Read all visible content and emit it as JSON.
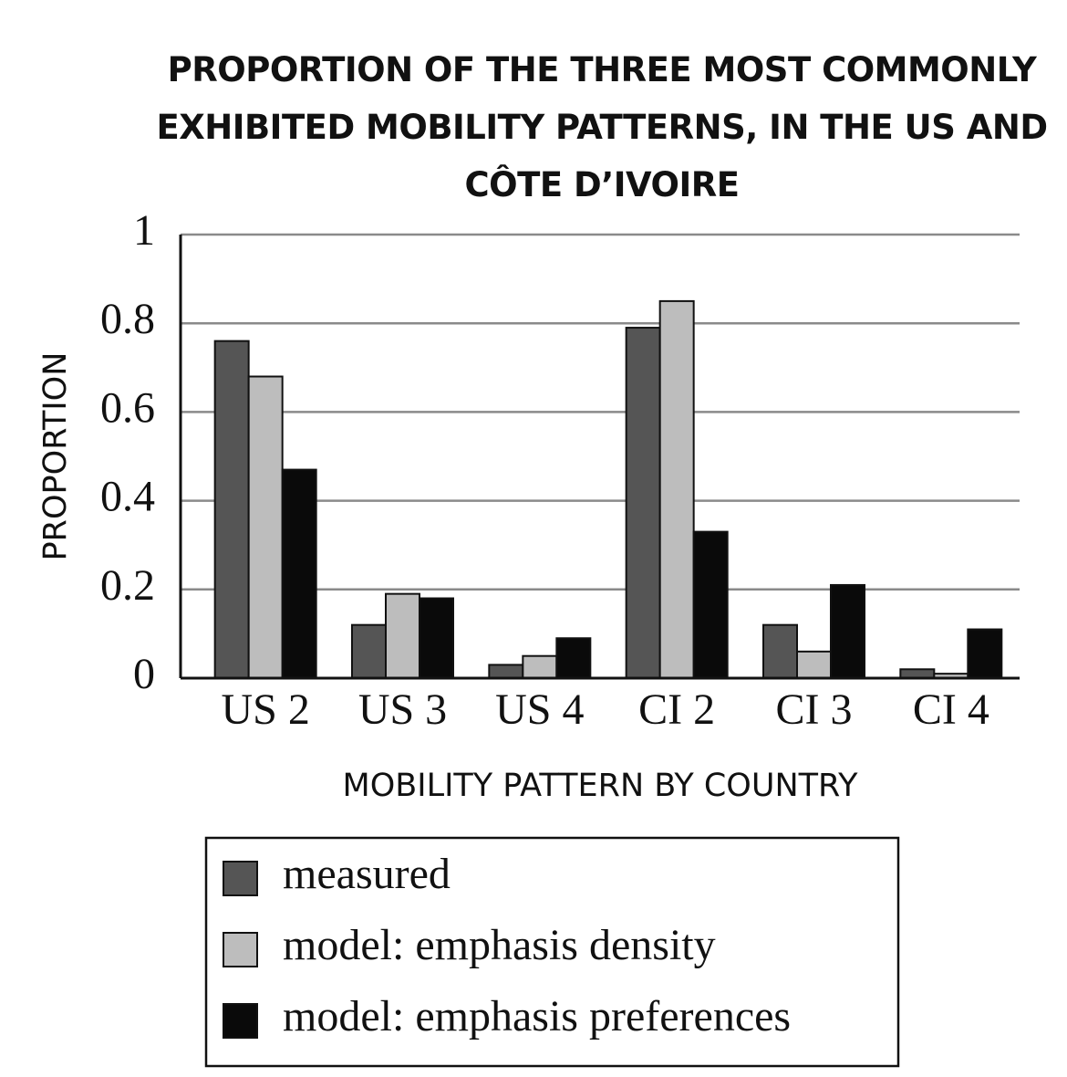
{
  "chart_data": {
    "type": "bar",
    "title": "PROPORTION OF THE THREE MOST COMMONLY EXHIBITED MOBILITY PATTERNS, IN THE US AND CÔTE D’IVOIRE",
    "x_label": "MOBILITY PATTERN BY COUNTRY",
    "y_label": "PROPORTION",
    "categories": [
      "US 2",
      "US 3",
      "US 4",
      "CI 2",
      "CI 3",
      "CI 4"
    ],
    "series": [
      {
        "name": "measured",
        "color": "#555555",
        "values": [
          0.76,
          0.12,
          0.03,
          0.79,
          0.12,
          0.02
        ]
      },
      {
        "name": "model: emphasis density",
        "color": "#bdbdbd",
        "values": [
          0.68,
          0.19,
          0.05,
          0.85,
          0.06,
          0.01
        ]
      },
      {
        "name": "model: emphasis preferences",
        "color": "#0a0a0a",
        "values": [
          0.47,
          0.18,
          0.09,
          0.33,
          0.21,
          0.11
        ]
      }
    ],
    "ylim": [
      0,
      1
    ],
    "yticks": [
      0,
      0.2,
      0.4,
      0.6,
      0.8,
      1
    ],
    "grid": true,
    "legend": "bottom"
  }
}
